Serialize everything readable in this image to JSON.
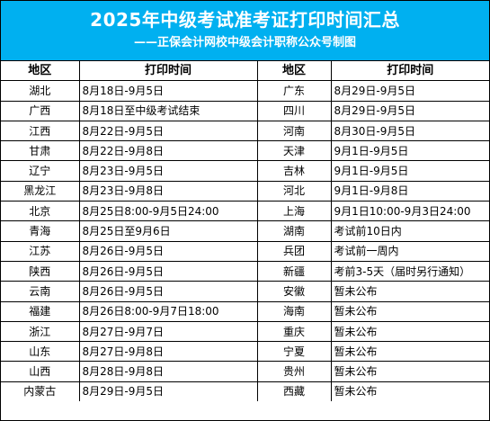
{
  "header": {
    "title": "2025年中级考试准考证打印时间汇总",
    "subtitle": "——正保会计网校中级会计职称公众号制图",
    "background_color": "#00b0f0"
  },
  "table": {
    "columns": [
      "地区",
      "打印时间",
      "地区",
      "打印时间"
    ],
    "rows": [
      {
        "region_left": "湖北",
        "time_left": "8月18日-9月5日",
        "region_right": "广东",
        "time_right": "8月29日-9月5日"
      },
      {
        "region_left": "广西",
        "time_left": "8月18日至中级考试结束",
        "region_right": "四川",
        "time_right": "8月29日-9月5日"
      },
      {
        "region_left": "江西",
        "time_left": "8月22日-9月5日",
        "region_right": "河南",
        "time_right": "8月30日-9月5日"
      },
      {
        "region_left": "甘肃",
        "time_left": "8月22日-9月8日",
        "region_right": "天津",
        "time_right": "9月1日-9月5日"
      },
      {
        "region_left": "辽宁",
        "time_left": "8月23日-9月5日",
        "region_right": "吉林",
        "time_right": "9月1日-9月5日"
      },
      {
        "region_left": "黑龙江",
        "time_left": "8月23日-9月8日",
        "region_right": "河北",
        "time_right": "9月1日-9月8日"
      },
      {
        "region_left": "北京",
        "time_left": "8月25日8:00-9月5日24:00",
        "region_right": "上海",
        "time_right": "9月1日10:00-9月3日24:00"
      },
      {
        "region_left": "青海",
        "time_left": "8月25日至9月6日",
        "region_right": "湖南",
        "time_right": "考试前10日内"
      },
      {
        "region_left": "江苏",
        "time_left": "8月26日-9月5日",
        "region_right": "兵团",
        "time_right": "考试前一周内"
      },
      {
        "region_left": "陕西",
        "time_left": "8月26日-9月5日",
        "region_right": "新疆",
        "time_right": "考前3-5天（届时另行通知）"
      },
      {
        "region_left": "云南",
        "time_left": "8月26日-9月5日",
        "region_right": "安徽",
        "time_right": "暂未公布"
      },
      {
        "region_left": "福建",
        "time_left": "8月26日8:00-9月7日18:00",
        "region_right": "海南",
        "time_right": "暂未公布"
      },
      {
        "region_left": "浙江",
        "time_left": "8月27日-9月7日",
        "region_right": "重庆",
        "time_right": "暂未公布"
      },
      {
        "region_left": "山东",
        "time_left": "8月27日-9月8日",
        "region_right": "宁夏",
        "time_right": "暂未公布"
      },
      {
        "region_left": "山西",
        "time_left": "8月28日-9月8日",
        "region_right": "贵州",
        "time_right": "暂未公布"
      },
      {
        "region_left": "内蒙古",
        "time_left": "8月29日-9月5日",
        "region_right": "西藏",
        "time_right": "暂未公布"
      }
    ]
  }
}
